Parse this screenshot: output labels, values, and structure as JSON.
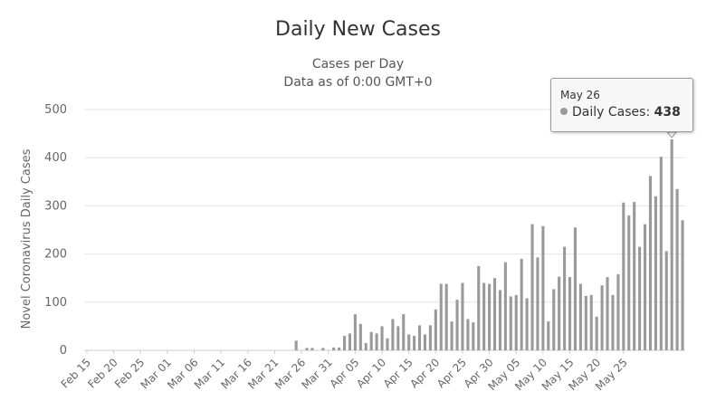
{
  "chart_data": {
    "type": "bar",
    "title": "Daily New Cases",
    "subtitle": [
      "Cases per Day",
      "Data as of 0:00 GMT+0"
    ],
    "ylabel": "Novel Coronavirus Daily Cases",
    "xlabel": "",
    "ylim": [
      0,
      500
    ],
    "yticks": [
      0,
      100,
      200,
      300,
      400,
      500
    ],
    "xtick_labels": [
      "Feb 15",
      "Feb 20",
      "Feb 25",
      "Mar 01",
      "Mar 06",
      "Mar 11",
      "Mar 16",
      "Mar 21",
      "Mar 26",
      "Mar 31",
      "Apr 05",
      "Apr 10",
      "Apr 15",
      "Apr 20",
      "Apr 25",
      "Apr 30",
      "May 05",
      "May 10",
      "May 15",
      "May 20",
      "May 25"
    ],
    "start_date": "2020-02-15",
    "bar_color": "#999999",
    "series": [
      {
        "name": "Daily Cases",
        "values": [
          0,
          0,
          0,
          0,
          0,
          0,
          0,
          0,
          0,
          0,
          0,
          0,
          0,
          0,
          0,
          0,
          0,
          0,
          0,
          0,
          0,
          0,
          0,
          0,
          0,
          0,
          0,
          0,
          0,
          0,
          0,
          0,
          0,
          0,
          0,
          0,
          0,
          0,
          0,
          20,
          0,
          5,
          5,
          0,
          5,
          0,
          6,
          6,
          30,
          35,
          75,
          55,
          15,
          38,
          35,
          50,
          25,
          65,
          50,
          75,
          33,
          30,
          52,
          33,
          52,
          85,
          138,
          138,
          60,
          105,
          140,
          65,
          58,
          175,
          140,
          138,
          150,
          125,
          183,
          112,
          115,
          190,
          108,
          262,
          193,
          258,
          60,
          127,
          153,
          215,
          152,
          255,
          138,
          113,
          115,
          70,
          135,
          152,
          115,
          158,
          307,
          280,
          308,
          215,
          262,
          362,
          320,
          402,
          206,
          438,
          335,
          270
        ]
      }
    ],
    "tooltip": {
      "date": "May 26",
      "series": "Daily Cases",
      "value": "438"
    }
  }
}
